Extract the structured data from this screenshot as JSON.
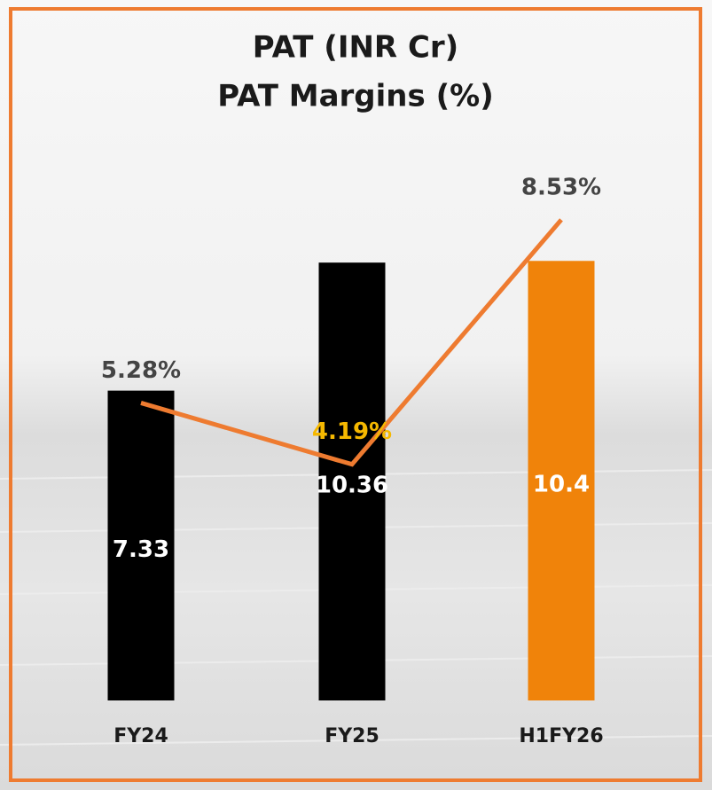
{
  "chart_data": {
    "type": "combo",
    "title": "PAT (INR Cr)",
    "subtitle": "PAT Margins (%)",
    "categories": [
      "FY24",
      "FY25",
      "H1FY26"
    ],
    "series": [
      {
        "type": "bar",
        "colors": [
          "#000000",
          "#000000",
          "#f0830a"
        ],
        "values": [
          7.33,
          10.36,
          10.4
        ]
      },
      {
        "type": "line",
        "axis": "y2",
        "color": "#ee7b30",
        "values": [
          5.28,
          4.19,
          8.53
        ],
        "value_labels": [
          "5.28%",
          "4.19%",
          "8.53%"
        ],
        "value_label_colors": [
          "#444444",
          "#f5b800",
          "#444444"
        ]
      }
    ],
    "ylim": [
      0,
      12
    ],
    "y2lim": [
      0,
      9
    ]
  }
}
